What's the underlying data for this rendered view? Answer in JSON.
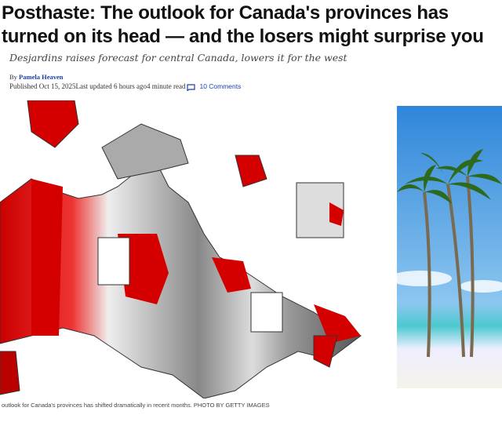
{
  "article": {
    "title": "Posthaste: The outlook for Canada's provinces has turned on its head — and the losers might surprise you",
    "subtitle": "Desjardins raises forecast for central Canada, lowers it for the west",
    "by_prefix": "By",
    "author": "Pamela Heaven",
    "published": "Published Oct 15, 2025",
    "updated": "Last updated 6 hours ago",
    "read_time": "4 minute read",
    "comments_label": "10 Comments",
    "caption": "outlook for Canada's provinces has shifted dramatically in recent months. PHOTO BY GETTY IMAGES"
  },
  "colors": {
    "accent": "#1a3fb4",
    "flag_red": "#d40000"
  },
  "icons": {
    "comments": "comment-bubble-icon"
  }
}
